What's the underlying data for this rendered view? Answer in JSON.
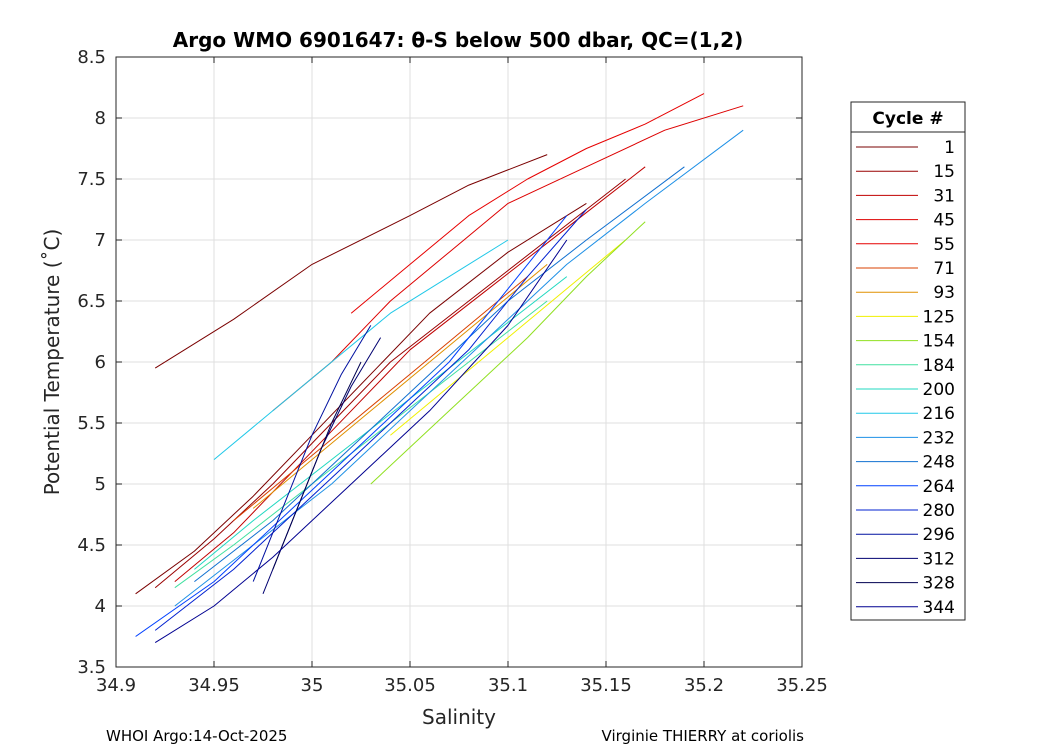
{
  "chart_data": {
    "type": "line",
    "title": "Argo WMO 6901647: θ-S below 500 dbar,  QC=(1,2)",
    "xlabel": "Salinity",
    "ylabel": "Potential Temperature (˚C)",
    "xlim": [
      34.9,
      35.25
    ],
    "ylim": [
      3.5,
      8.5
    ],
    "xticks": [
      34.9,
      34.95,
      35.0,
      35.05,
      35.1,
      35.15,
      35.2,
      35.25
    ],
    "xtick_labels": [
      "34.9",
      "34.95",
      "35",
      "35.05",
      "35.1",
      "35.15",
      "35.2",
      "35.25"
    ],
    "yticks": [
      3.5,
      4,
      4.5,
      5,
      5.5,
      6,
      6.5,
      7,
      7.5,
      8,
      8.5
    ],
    "ytick_labels": [
      "3.5",
      "4",
      "4.5",
      "5",
      "5.5",
      "6",
      "6.5",
      "7",
      "7.5",
      "8",
      "8.5"
    ],
    "grid": true,
    "legend": {
      "title": "Cycle #",
      "placement": "outside-right",
      "entries": [
        {
          "label": "1",
          "color": "#7a0000"
        },
        {
          "label": "15",
          "color": "#990000"
        },
        {
          "label": "31",
          "color": "#c00000"
        },
        {
          "label": "45",
          "color": "#dd0000"
        },
        {
          "label": "55",
          "color": "#e60000"
        },
        {
          "label": "71",
          "color": "#d94000"
        },
        {
          "label": "93",
          "color": "#e09000"
        },
        {
          "label": "125",
          "color": "#f0f000"
        },
        {
          "label": "154",
          "color": "#90e020"
        },
        {
          "label": "184",
          "color": "#40e0a0"
        },
        {
          "label": "200",
          "color": "#20d8c0"
        },
        {
          "label": "216",
          "color": "#20c8e8"
        },
        {
          "label": "232",
          "color": "#1e90e6"
        },
        {
          "label": "248",
          "color": "#1070d0"
        },
        {
          "label": "264",
          "color": "#0040ff"
        },
        {
          "label": "280",
          "color": "#0020d0"
        },
        {
          "label": "296",
          "color": "#0010a0"
        },
        {
          "label": "312",
          "color": "#000070"
        },
        {
          "label": "328",
          "color": "#000050"
        },
        {
          "label": "344",
          "color": "#000090"
        }
      ]
    },
    "series": [
      {
        "name": "1",
        "color": "#7a0000",
        "x": [
          34.91,
          34.94,
          34.97,
          35.0,
          35.03,
          35.06,
          35.1,
          35.14
        ],
        "y": [
          4.1,
          4.45,
          4.9,
          5.4,
          5.9,
          6.4,
          6.9,
          7.3
        ]
      },
      {
        "name": "1",
        "color": "#7a0000",
        "x": [
          34.92,
          34.94,
          34.96,
          35.0,
          35.05,
          35.08,
          35.12
        ],
        "y": [
          5.95,
          6.15,
          6.35,
          6.8,
          7.2,
          7.45,
          7.7
        ]
      },
      {
        "name": "15",
        "color": "#990000",
        "x": [
          34.92,
          34.95,
          34.98,
          35.01,
          35.04,
          35.08,
          35.12,
          35.16
        ],
        "y": [
          4.15,
          4.55,
          5.0,
          5.5,
          6.0,
          6.5,
          7.0,
          7.5
        ]
      },
      {
        "name": "31",
        "color": "#c00000",
        "x": [
          34.93,
          34.96,
          34.99,
          35.02,
          35.05,
          35.09,
          35.13,
          35.17
        ],
        "y": [
          4.2,
          4.6,
          5.1,
          5.6,
          6.1,
          6.6,
          7.1,
          7.6
        ]
      },
      {
        "name": "45",
        "color": "#dd0000",
        "x": [
          34.98,
          35.01,
          35.04,
          35.07,
          35.1,
          35.14,
          35.18,
          35.22
        ],
        "y": [
          5.6,
          6.0,
          6.5,
          6.9,
          7.3,
          7.6,
          7.9,
          8.1
        ]
      },
      {
        "name": "55",
        "color": "#e60000",
        "x": [
          35.02,
          35.05,
          35.08,
          35.11,
          35.14,
          35.17,
          35.2
        ],
        "y": [
          6.4,
          6.8,
          7.2,
          7.5,
          7.75,
          7.95,
          8.2
        ]
      },
      {
        "name": "71",
        "color": "#d94000",
        "x": [
          34.96,
          34.99,
          35.02,
          35.05,
          35.08,
          35.11
        ],
        "y": [
          4.7,
          5.1,
          5.5,
          5.9,
          6.3,
          6.7
        ]
      },
      {
        "name": "93",
        "color": "#e09000",
        "x": [
          34.97,
          35.0,
          35.03,
          35.06,
          35.09,
          35.12
        ],
        "y": [
          4.8,
          5.2,
          5.6,
          6.0,
          6.4,
          6.8
        ]
      },
      {
        "name": "125",
        "color": "#f0f000",
        "x": [
          35.04,
          35.07,
          35.1,
          35.13,
          35.16
        ],
        "y": [
          5.4,
          5.8,
          6.2,
          6.6,
          7.0
        ]
      },
      {
        "name": "154",
        "color": "#90e020",
        "x": [
          35.03,
          35.07,
          35.11,
          35.14,
          35.17
        ],
        "y": [
          5.0,
          5.6,
          6.2,
          6.7,
          7.15
        ]
      },
      {
        "name": "184",
        "color": "#40e0a0",
        "x": [
          34.93,
          34.96,
          35.0,
          35.04,
          35.08,
          35.12
        ],
        "y": [
          4.15,
          4.5,
          5.0,
          5.5,
          6.0,
          6.5
        ]
      },
      {
        "name": "200",
        "color": "#20d8c0",
        "x": [
          34.94,
          34.97,
          35.01,
          35.05,
          35.09,
          35.13
        ],
        "y": [
          4.3,
          4.7,
          5.2,
          5.7,
          6.2,
          6.7
        ]
      },
      {
        "name": "216",
        "color": "#20c8e8",
        "x": [
          34.95,
          34.98,
          35.01,
          35.04,
          35.07,
          35.1
        ],
        "y": [
          5.2,
          5.6,
          6.0,
          6.4,
          6.7,
          7.0
        ]
      },
      {
        "name": "232",
        "color": "#1e90e6",
        "x": [
          34.93,
          34.97,
          35.01,
          35.05,
          35.09,
          35.13,
          35.17,
          35.22
        ],
        "y": [
          4.0,
          4.5,
          5.0,
          5.6,
          6.2,
          6.8,
          7.3,
          7.9
        ]
      },
      {
        "name": "248",
        "color": "#1070d0",
        "x": [
          34.94,
          34.98,
          35.02,
          35.06,
          35.1,
          35.14,
          35.19
        ],
        "y": [
          4.2,
          4.7,
          5.3,
          5.9,
          6.5,
          7.0,
          7.6
        ]
      },
      {
        "name": "264",
        "color": "#0040ff",
        "x": [
          34.91,
          34.95,
          34.99,
          35.03,
          35.07,
          35.1,
          35.13
        ],
        "y": [
          3.75,
          4.2,
          4.8,
          5.4,
          6.0,
          6.6,
          7.2
        ]
      },
      {
        "name": "280",
        "color": "#0020d0",
        "x": [
          34.92,
          34.96,
          35.0,
          35.04,
          35.08,
          35.11,
          35.14
        ],
        "y": [
          3.8,
          4.3,
          4.9,
          5.5,
          6.1,
          6.7,
          7.25
        ]
      },
      {
        "name": "296",
        "color": "#0010a0",
        "x": [
          34.97,
          34.985,
          35.0,
          35.015,
          35.03
        ],
        "y": [
          4.2,
          4.8,
          5.4,
          5.9,
          6.3
        ]
      },
      {
        "name": "312",
        "color": "#000070",
        "x": [
          34.975,
          34.99,
          35.005,
          35.02,
          35.035
        ],
        "y": [
          4.1,
          4.7,
          5.3,
          5.8,
          6.2
        ]
      },
      {
        "name": "328",
        "color": "#000050",
        "x": [
          34.98,
          34.995,
          35.01,
          35.025
        ],
        "y": [
          4.3,
          4.9,
          5.5,
          6.0
        ]
      },
      {
        "name": "344",
        "color": "#000090",
        "x": [
          34.92,
          34.95,
          34.98,
          35.02,
          35.06,
          35.1,
          35.13
        ],
        "y": [
          3.7,
          4.0,
          4.4,
          5.0,
          5.6,
          6.3,
          7.0
        ]
      }
    ]
  },
  "footer": {
    "left": "WHOI Argo:14-Oct-2025",
    "right": "Virginie THIERRY at coriolis"
  }
}
